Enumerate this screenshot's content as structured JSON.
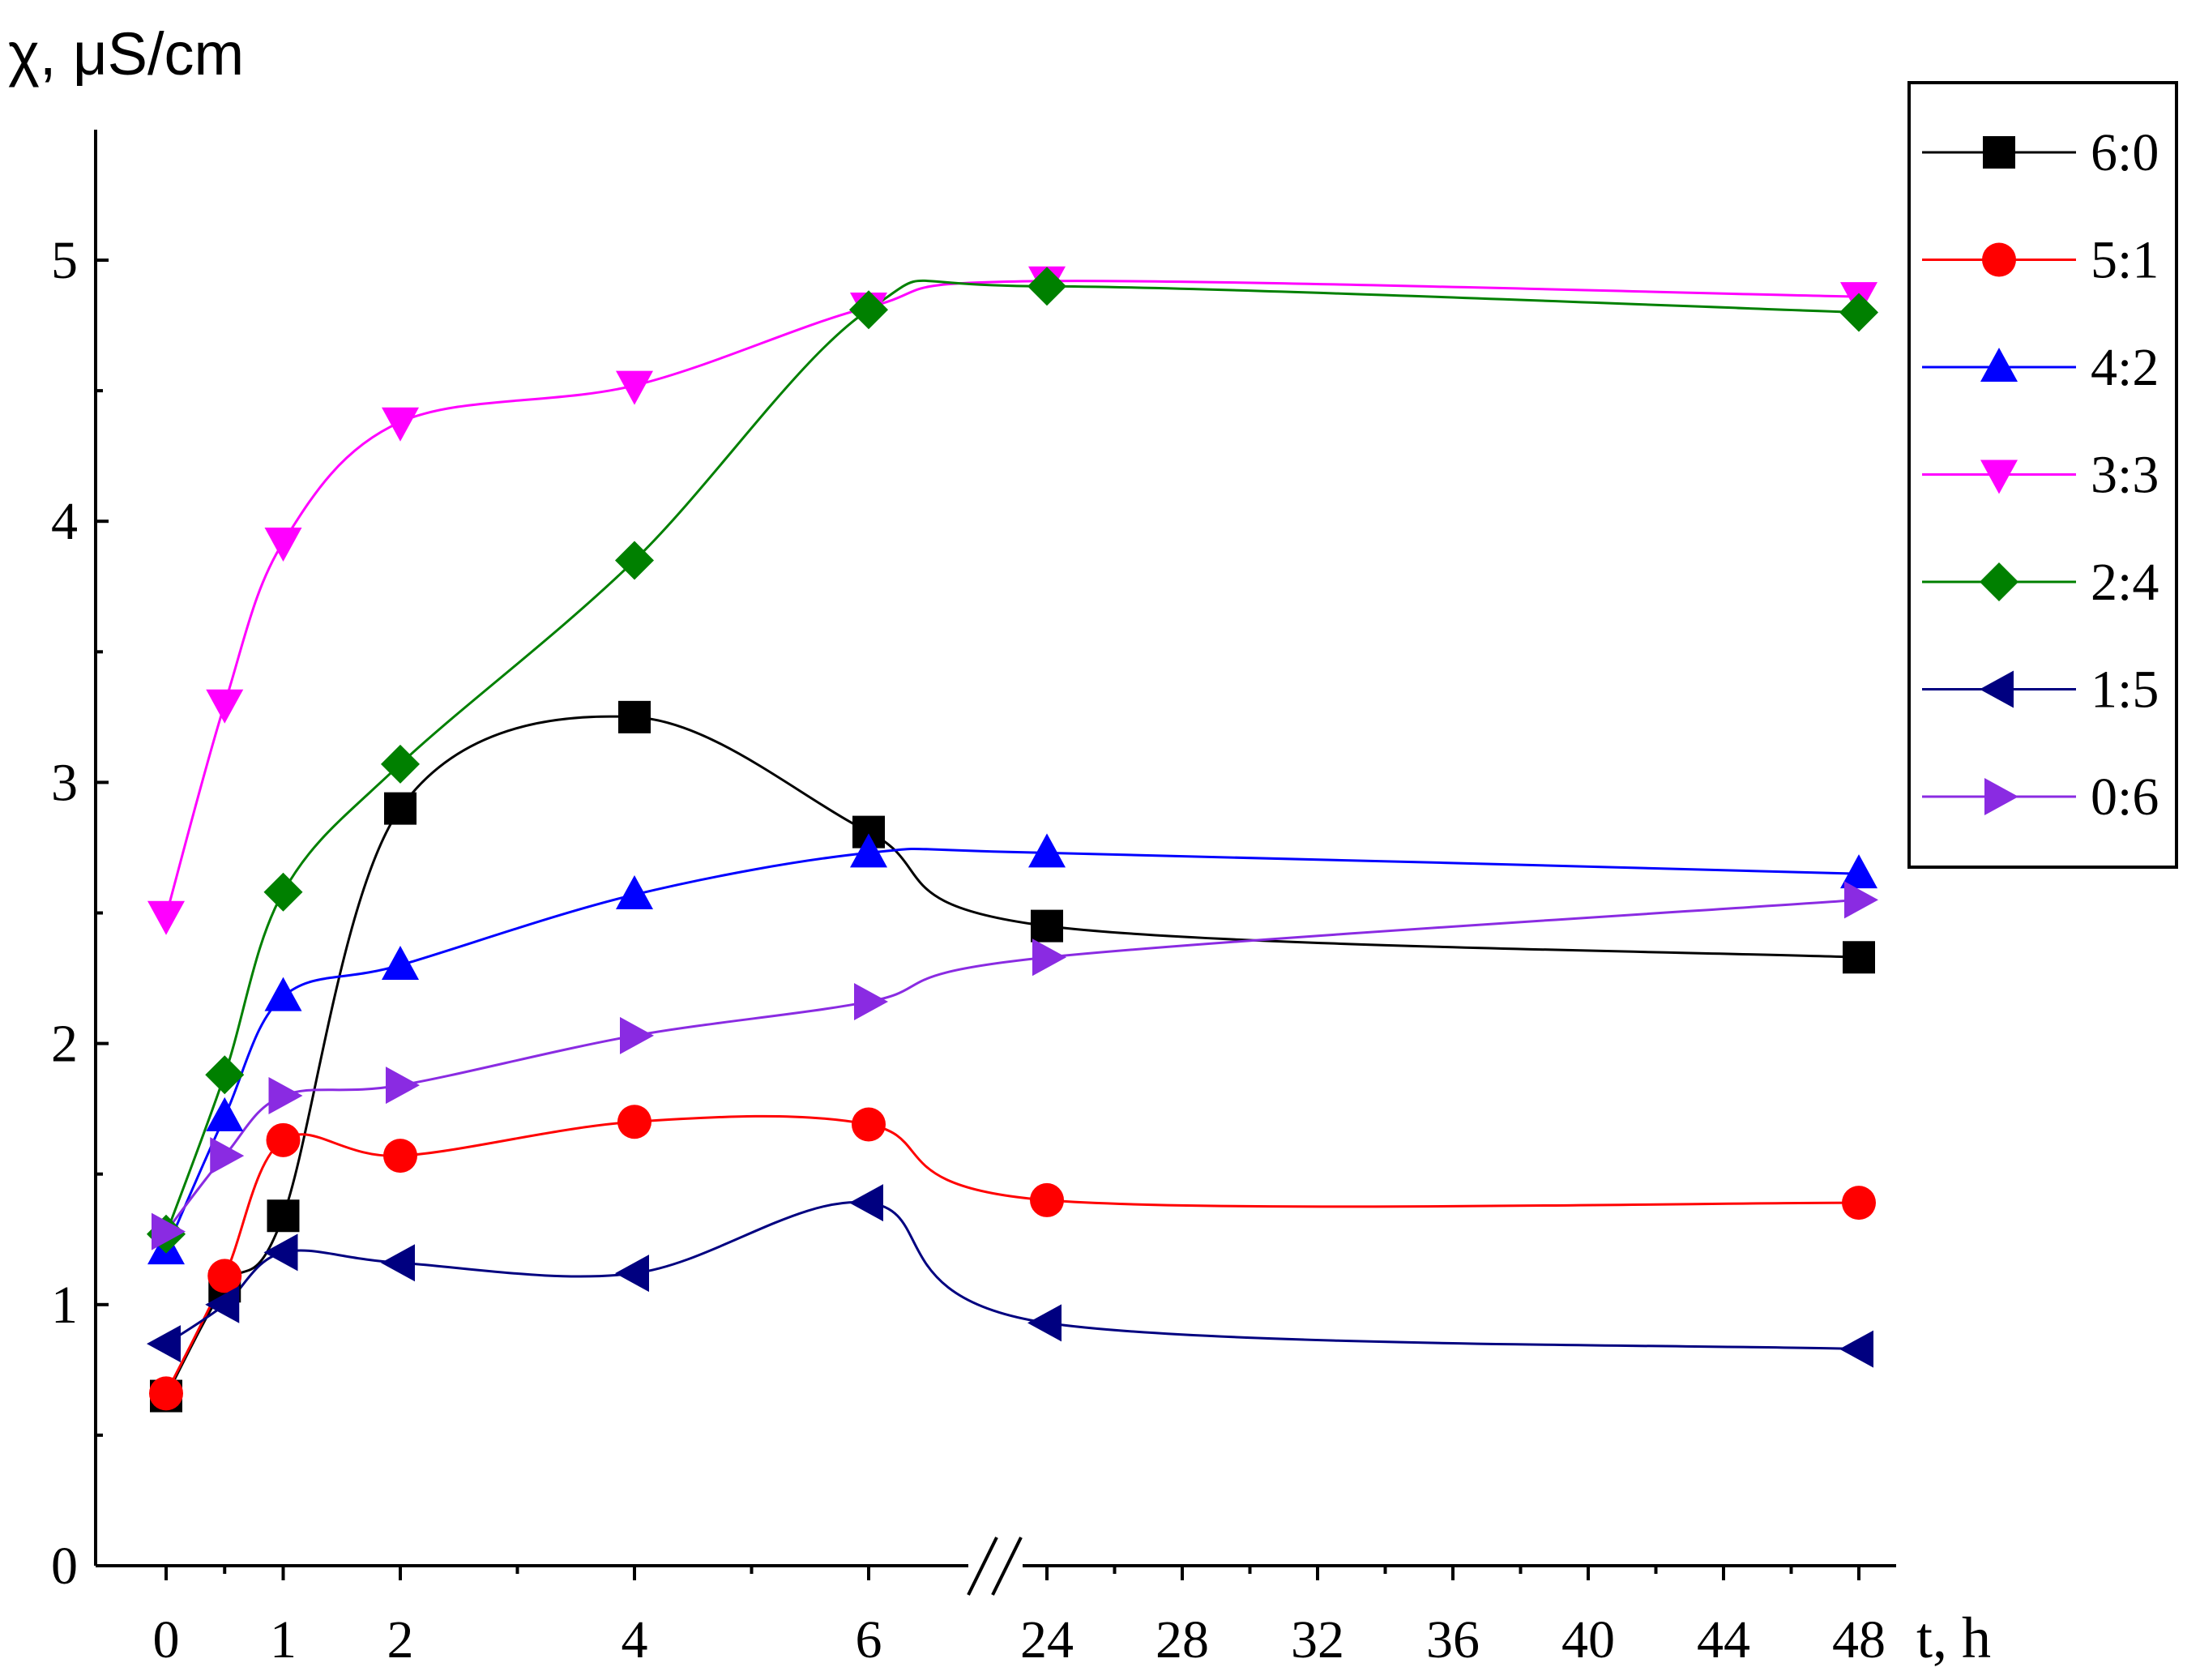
{
  "chart_data": {
    "type": "line",
    "ylabel": "χ, μS/cm",
    "xlabel": "t, h",
    "ylim": [
      0,
      5.5
    ],
    "y_ticks": [
      "0",
      "1",
      "2",
      "3",
      "4",
      "5"
    ],
    "x_axis_note": "broken axis between 6 and 24",
    "x_ticks_segment1": [
      "0",
      "1",
      "2",
      "4",
      "6"
    ],
    "x_ticks_segment2": [
      "24",
      "28",
      "32",
      "36",
      "40",
      "44",
      "48"
    ],
    "x": [
      0,
      0.5,
      1,
      2,
      4,
      6,
      24,
      48
    ],
    "series": [
      {
        "name": "6:0",
        "color": "#000000",
        "marker": "square",
        "values": [
          0.65,
          1.07,
          1.34,
          2.9,
          3.25,
          2.81,
          2.45,
          2.33
        ]
      },
      {
        "name": "5:1",
        "color": "#ff0000",
        "marker": "circle",
        "values": [
          0.66,
          1.11,
          1.63,
          1.57,
          1.7,
          1.69,
          1.4,
          1.39
        ]
      },
      {
        "name": "4:2",
        "color": "#0000ff",
        "marker": "triangle-up",
        "values": [
          1.21,
          1.72,
          2.18,
          2.3,
          2.57,
          2.73,
          2.73,
          2.65
        ]
      },
      {
        "name": "3:3",
        "color": "#ff00ff",
        "marker": "triangle-down",
        "values": [
          2.49,
          3.3,
          3.92,
          4.38,
          4.52,
          4.82,
          4.92,
          4.86
        ]
      },
      {
        "name": "2:4",
        "color": "#008000",
        "marker": "diamond",
        "values": [
          1.27,
          1.88,
          2.58,
          3.07,
          3.85,
          4.81,
          4.9,
          4.8
        ]
      },
      {
        "name": "1:5",
        "color": "#000080",
        "marker": "triangle-left",
        "values": [
          0.85,
          1.0,
          1.2,
          1.16,
          1.12,
          1.39,
          0.93,
          0.83
        ]
      },
      {
        "name": "0:6",
        "color": "#8a2be2",
        "marker": "triangle-right",
        "values": [
          1.28,
          1.57,
          1.8,
          1.84,
          2.03,
          2.16,
          2.33,
          2.55
        ]
      }
    ]
  }
}
